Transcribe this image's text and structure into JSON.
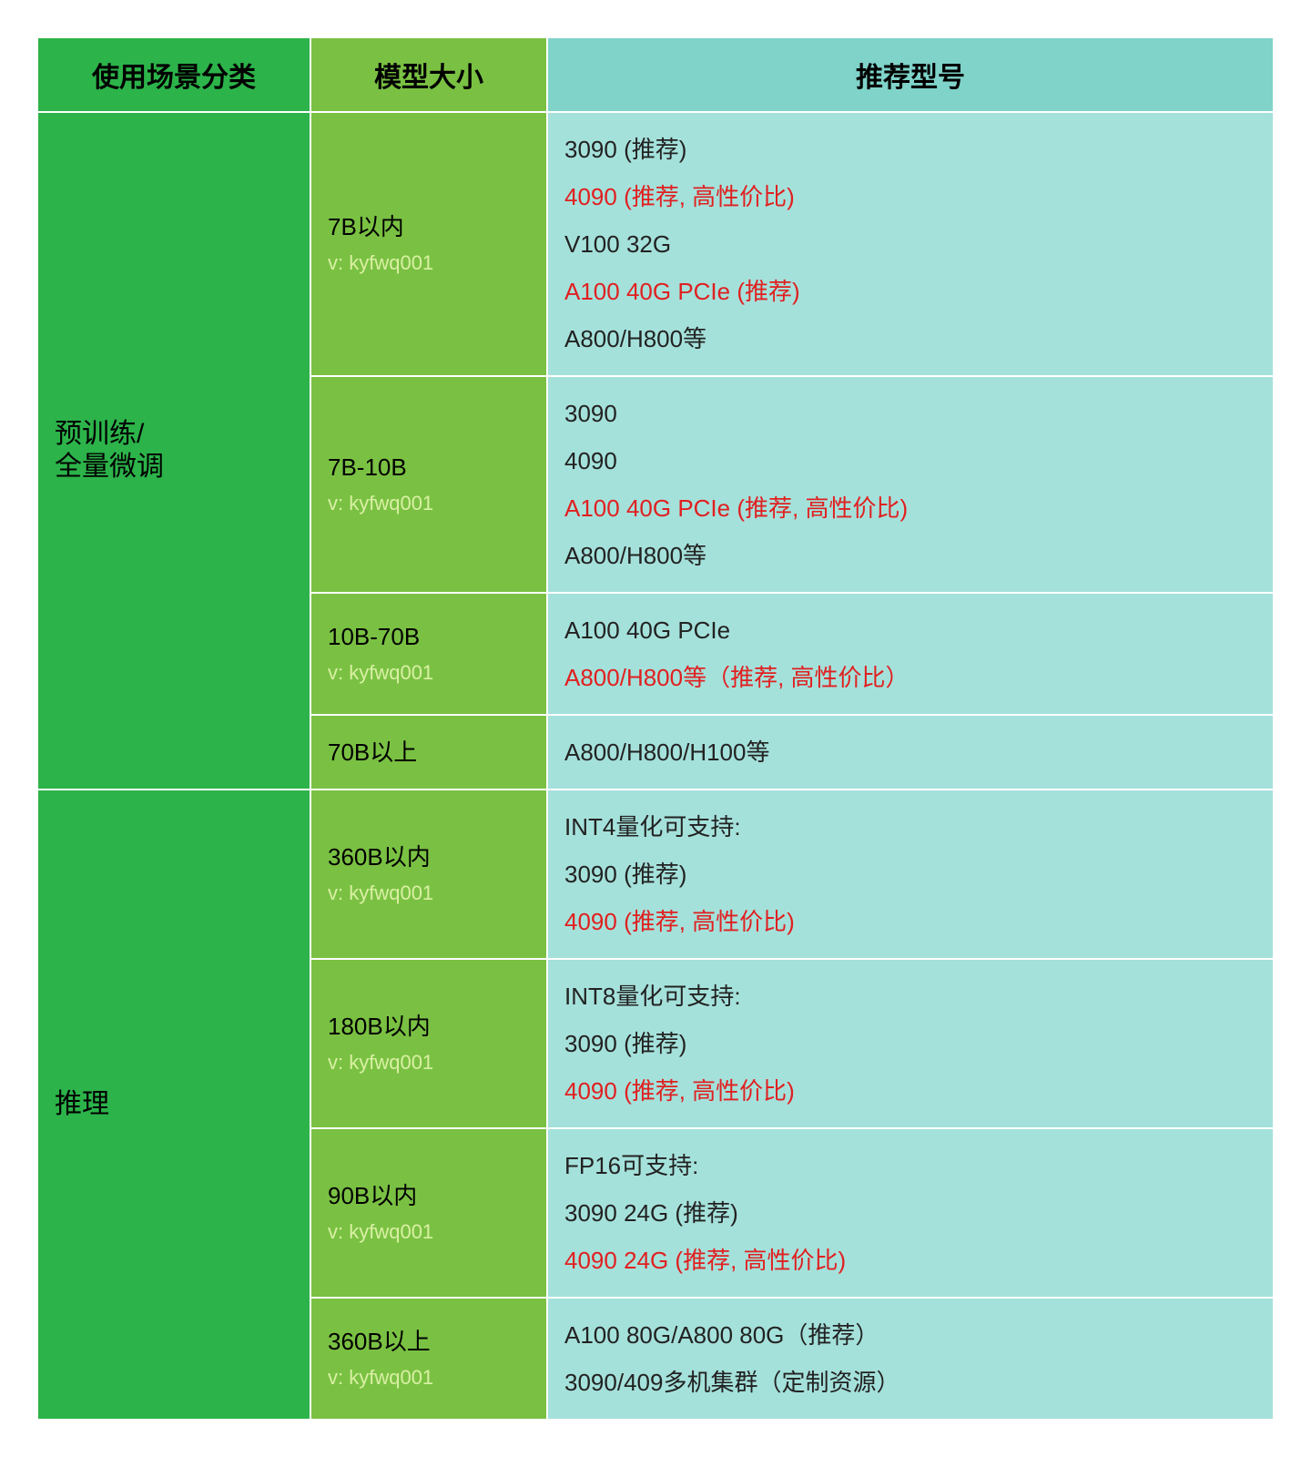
{
  "columns": {
    "scene": "使用场景分类",
    "size": "模型大小",
    "rec": "推荐型号"
  },
  "watermark": "v: kyfwq001",
  "categories": [
    {
      "name": "预训练/\n全量微调",
      "rows": [
        {
          "size": "7B以内",
          "recs": [
            {
              "text": "3090 (推荐)",
              "hl": false
            },
            {
              "text": "4090 (推荐, 高性价比)",
              "hl": true
            },
            {
              "text": "V100 32G",
              "hl": false
            },
            {
              "text": "A100 40G PCIe (推荐)",
              "hl": true
            },
            {
              "text": "A800/H800等",
              "hl": false
            }
          ]
        },
        {
          "size": "7B-10B",
          "recs": [
            {
              "text": "3090",
              "hl": false
            },
            {
              "text": "4090",
              "hl": false
            },
            {
              "text": "A100 40G PCIe (推荐, 高性价比)",
              "hl": true
            },
            {
              "text": "A800/H800等",
              "hl": false
            }
          ]
        },
        {
          "size": "10B-70B",
          "recs": [
            {
              "text": "A100 40G PCIe",
              "hl": false
            },
            {
              "text": "A800/H800等（推荐, 高性价比）",
              "hl": true
            }
          ]
        },
        {
          "size": "70B以上",
          "show_wm": false,
          "recs": [
            {
              "text": "A800/H800/H100等",
              "hl": false
            }
          ]
        }
      ]
    },
    {
      "name": "推理",
      "rows": [
        {
          "size": "360B以内",
          "recs": [
            {
              "text": "INT4量化可支持:",
              "hl": false
            },
            {
              "text": "3090 (推荐)",
              "hl": false
            },
            {
              "text": "4090 (推荐, 高性价比)",
              "hl": true
            }
          ]
        },
        {
          "size": "180B以内",
          "recs": [
            {
              "text": "INT8量化可支持:",
              "hl": false
            },
            {
              "text": "3090 (推荐)",
              "hl": false
            },
            {
              "text": "4090 (推荐, 高性价比)",
              "hl": true
            }
          ]
        },
        {
          "size": "90B以内",
          "recs": [
            {
              "text": "FP16可支持:",
              "hl": false
            },
            {
              "text": "3090 24G (推荐)",
              "hl": false
            },
            {
              "text": "4090 24G (推荐, 高性价比)",
              "hl": true
            }
          ]
        },
        {
          "size": "360B以上",
          "recs": [
            {
              "text": "A100 80G/A800 80G（推荐）",
              "hl": false
            },
            {
              "text": "3090/409多机集群（定制资源）",
              "hl": false
            }
          ]
        }
      ]
    }
  ],
  "colors": {
    "header_scene": "#2cb34a",
    "header_size": "#7ac143",
    "header_rec": "#7fd3c9",
    "category_bg": "#2cb34a",
    "size_bg": "#7ac143",
    "rec_bg": "#a5e1db",
    "highlight_text": "#e02020",
    "normal_text": "#222222",
    "watermark_text": "#d9f0a3",
    "border": "#ffffff"
  }
}
